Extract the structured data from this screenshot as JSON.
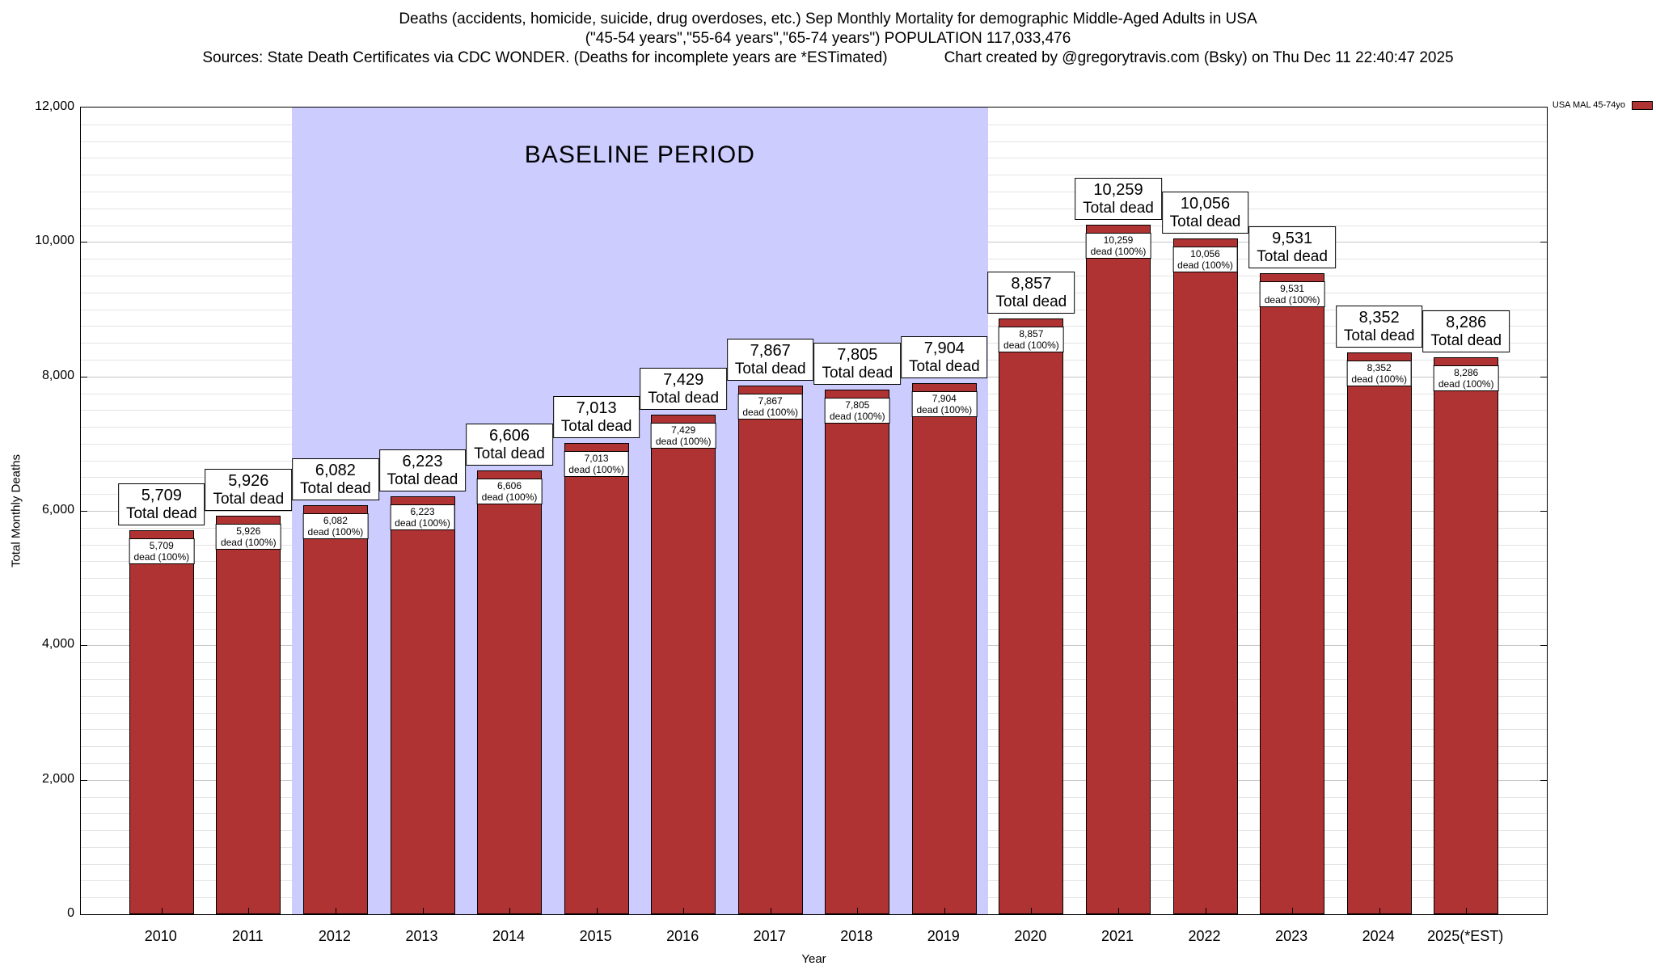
{
  "header": {
    "line1": "Deaths (accidents, homicide, suicide, drug overdoses, etc.) Sep Monthly Mortality for demographic Middle-Aged Adults in USA",
    "line2": "(\"45-54 years\",\"55-64 years\",\"65-74 years\") POPULATION 117,033,476",
    "sources": "Sources: State Death Certificates via CDC WONDER. (Deaths for incomplete years are *ESTimated)",
    "credit": "Chart created by @gregorytravis.com (Bsky) on Thu Dec 11 22:40:47 2025"
  },
  "legend": {
    "label": "USA MAL 45-74yo"
  },
  "colors": {
    "bar": "#b03333",
    "baseline": "#ccccff"
  },
  "chart_data": {
    "type": "bar",
    "title": "Deaths (accidents, homicide, suicide, drug overdoses, etc.) Sep Monthly Mortality for demographic Middle-Aged Adults in USA",
    "xlabel": "Year",
    "ylabel": "Total Monthly Deaths",
    "ylim": [
      0,
      12000
    ],
    "yticks": [
      0,
      2000,
      4000,
      6000,
      8000,
      10000,
      12000
    ],
    "grid": {
      "on": true,
      "minor_interval": 250
    },
    "legend_position": "top-right",
    "series_name": "USA MAL 45-74yo",
    "categories": [
      "2010",
      "2011",
      "2012",
      "2013",
      "2014",
      "2015",
      "2016",
      "2017",
      "2018",
      "2019",
      "2020",
      "2021",
      "2022",
      "2023",
      "2024",
      "2025(*EST)"
    ],
    "values": [
      5709,
      5926,
      6082,
      6223,
      6606,
      7013,
      7429,
      7867,
      7805,
      7904,
      8857,
      10259,
      10056,
      9531,
      8352,
      8286
    ],
    "labels": {
      "total": "Total dead",
      "inner": "dead (100%)"
    },
    "baseline": {
      "label": "BASELINE PERIOD",
      "start_category": "2012",
      "end_category": "2019"
    }
  }
}
